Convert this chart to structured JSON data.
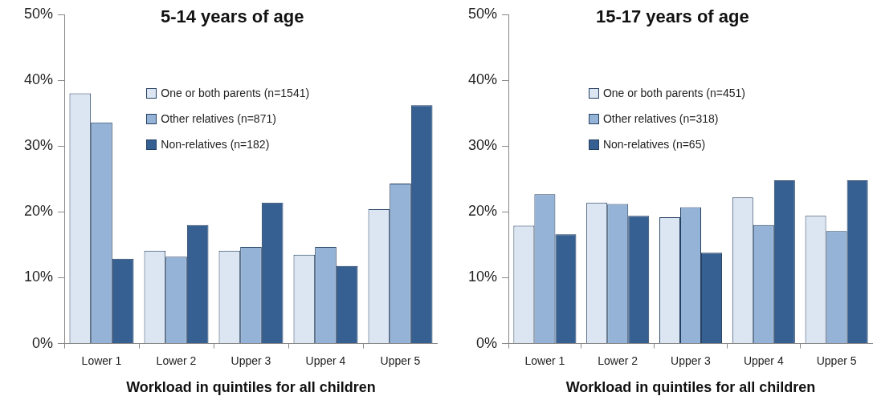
{
  "chart_data": [
    {
      "type": "bar",
      "title": "5-14 years of age",
      "xlabel": "Workload in quintiles for all children",
      "categories": [
        "Lower 1",
        "Lower 2",
        "Upper 3",
        "Upper 4",
        "Upper 5"
      ],
      "series": [
        {
          "name": "One or both parents (n=1541)",
          "color": "#dce6f2",
          "values": [
            38.0,
            14.1,
            14.1,
            13.5,
            20.4
          ]
        },
        {
          "name": "Other relatives (n=871)",
          "color": "#95b3d7",
          "values": [
            33.6,
            13.2,
            14.7,
            14.7,
            24.3
          ]
        },
        {
          "name": "Non-relatives (n=182)",
          "color": "#366092",
          "values": [
            12.9,
            18.0,
            21.4,
            11.8,
            36.2
          ]
        }
      ],
      "ylim": [
        0,
        50
      ],
      "yticks": [
        {
          "value": 0,
          "label": "0%"
        },
        {
          "value": 10,
          "label": "10%"
        },
        {
          "value": 20,
          "label": "20%"
        },
        {
          "value": 30,
          "label": "30%"
        },
        {
          "value": 40,
          "label": "40%"
        },
        {
          "value": 50,
          "label": "50%"
        }
      ],
      "grid": false,
      "legend": "top"
    },
    {
      "type": "bar",
      "title": "15-17 years of age",
      "xlabel": "Workload in quintiles for all children",
      "categories": [
        "Lower 1",
        "Lower 2",
        "Upper 3",
        "Upper 4",
        "Upper 5"
      ],
      "series": [
        {
          "name": "One or both parents (n=451)",
          "color": "#dce6f2",
          "values": [
            17.9,
            21.4,
            19.2,
            22.2,
            19.4
          ]
        },
        {
          "name": "Other relatives (n=318)",
          "color": "#95b3d7",
          "values": [
            22.7,
            21.2,
            20.7,
            18.0,
            17.1
          ]
        },
        {
          "name": "Non-relatives (n=65)",
          "color": "#366092",
          "values": [
            16.6,
            19.4,
            13.8,
            24.8,
            24.8
          ]
        }
      ],
      "ylim": [
        0,
        50
      ],
      "yticks": [
        {
          "value": 0,
          "label": "0%"
        },
        {
          "value": 10,
          "label": "10%"
        },
        {
          "value": 20,
          "label": "20%"
        },
        {
          "value": 30,
          "label": "30%"
        },
        {
          "value": 40,
          "label": "40%"
        },
        {
          "value": 50,
          "label": "50%"
        }
      ],
      "grid": false,
      "legend": "top"
    }
  ]
}
